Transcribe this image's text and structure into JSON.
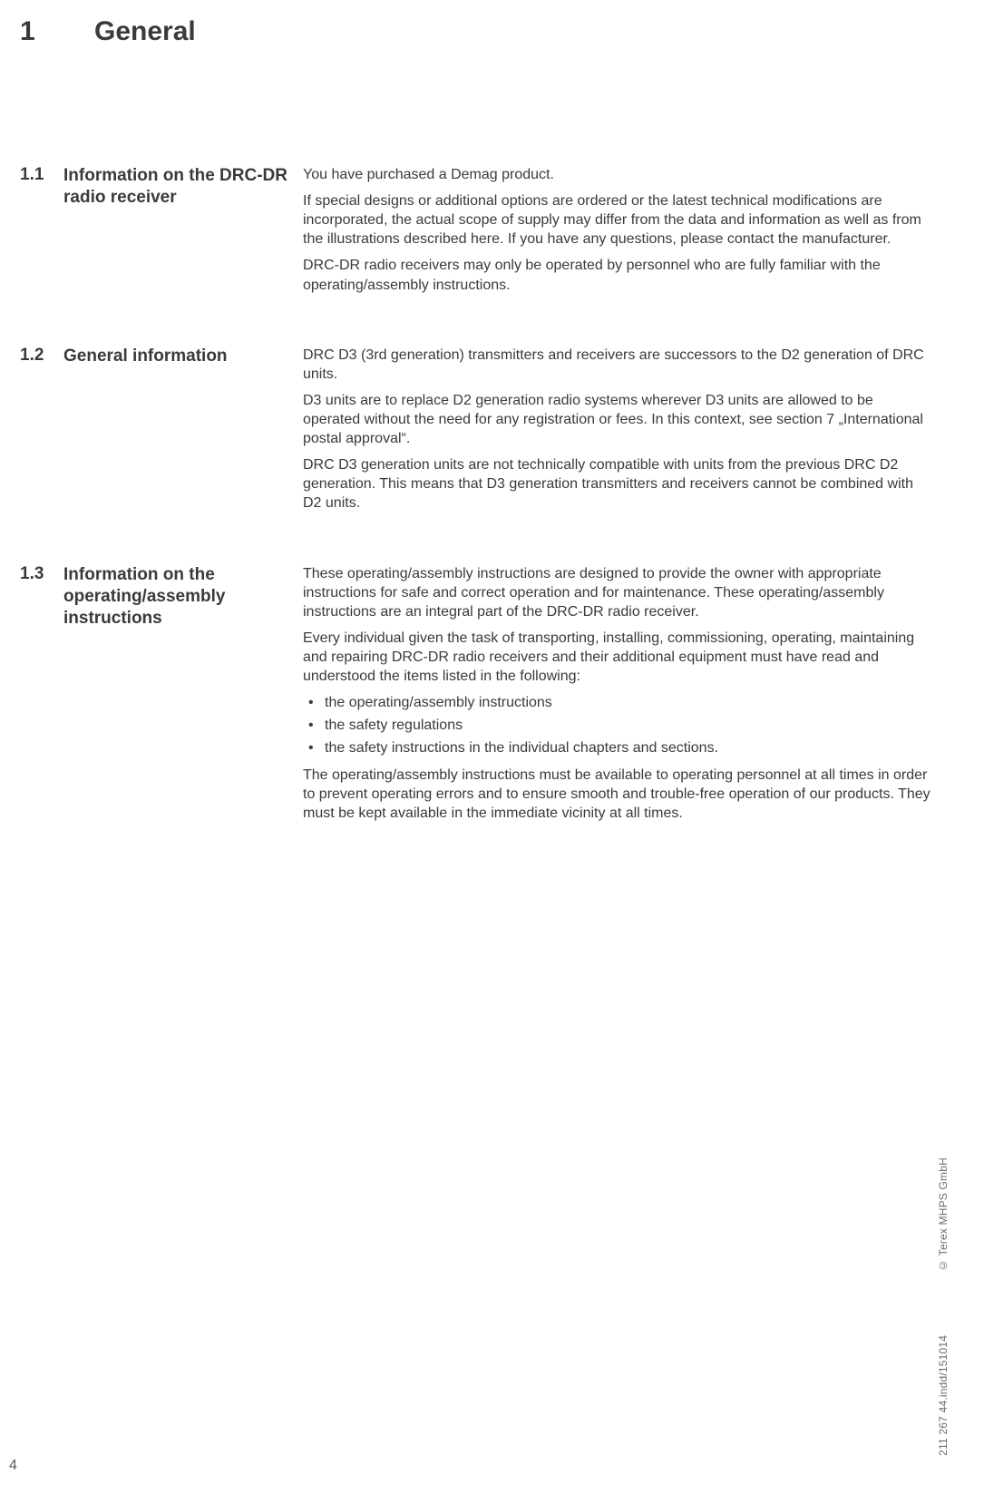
{
  "chapter": {
    "number": "1",
    "title": "General"
  },
  "sections": [
    {
      "number": "1.1",
      "title": "Information on the DRC-DR radio receiver",
      "paragraphs": [
        "You have purchased a Demag product.",
        "If special designs or additional options are ordered or the latest technical modifications are incorporated, the actual scope of supply may differ from the data and information as well as from the illustrations described here. If you have any questions, please contact the manufacturer.",
        "DRC-DR radio receivers may only be operated by personnel who are fully familiar with the operating/assembly instructions."
      ]
    },
    {
      "number": "1.2",
      "title": "General information",
      "paragraphs": [
        "DRC D3 (3rd generation) transmitters and receivers are successors to the D2 generation of DRC units.",
        "D3 units are to replace D2 generation radio systems wherever D3 units are allowed to be operated without the need for any registration or fees. In this context, see section 7 „International postal approval“.",
        "DRC D3 generation units are not technically compatible with units from the previous DRC D2 generation. This means that D3 generation transmitters and receivers cannot be combined with D2 units."
      ]
    },
    {
      "number": "1.3",
      "title": "Information on the operating/assembly instructions",
      "paragraphs_before": [
        "These operating/assembly instructions are designed to provide the owner with appropriate instructions for safe and correct operation and for maintenance. These operating/assembly instructions are an integral part of the DRC-DR radio receiver.",
        "Every individual given the task of transporting, installing, commissioning, operating, maintaining and repairing DRC-DR radio receivers and their additional equipment must have read and understood the items listed in the following:"
      ],
      "bullets": [
        "the operating/assembly instructions",
        "the safety regulations",
        "the safety instructions in the individual chapters and sections."
      ],
      "paragraphs_after": [
        "The operating/assembly instructions must be available to operating personnel at all times in order to prevent operating errors and to ensure smooth and trouble-free operation of our products. They must be kept available in the immediate vicinity at all times."
      ]
    }
  ],
  "footer": {
    "doc_id": "211 267 44.indd/151014",
    "copyright": "© Terex MHPS GmbH",
    "page_number": "4"
  }
}
